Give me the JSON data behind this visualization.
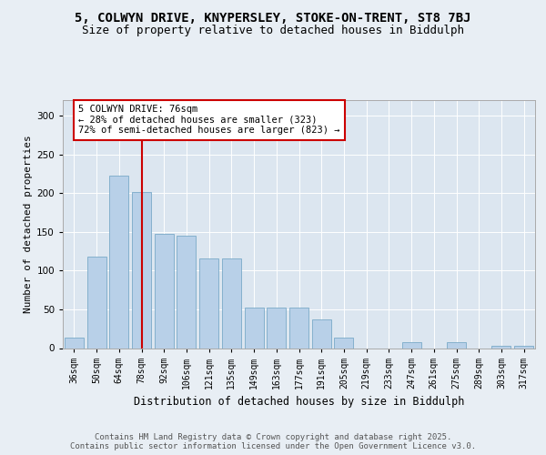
{
  "title1": "5, COLWYN DRIVE, KNYPERSLEY, STOKE-ON-TRENT, ST8 7BJ",
  "title2": "Size of property relative to detached houses in Biddulph",
  "xlabel": "Distribution of detached houses by size in Biddulph",
  "ylabel": "Number of detached properties",
  "categories": [
    "36sqm",
    "50sqm",
    "64sqm",
    "78sqm",
    "92sqm",
    "106sqm",
    "121sqm",
    "135sqm",
    "149sqm",
    "163sqm",
    "177sqm",
    "191sqm",
    "205sqm",
    "219sqm",
    "233sqm",
    "247sqm",
    "261sqm",
    "275sqm",
    "289sqm",
    "303sqm",
    "317sqm"
  ],
  "values": [
    13,
    118,
    222,
    201,
    147,
    145,
    116,
    116,
    52,
    52,
    52,
    37,
    14,
    0,
    0,
    8,
    0,
    8,
    0,
    3,
    3
  ],
  "bar_color": "#b8d0e8",
  "bar_edge_color": "#7aaac8",
  "vline_x": 3,
  "vline_color": "#cc0000",
  "annotation_text": "5 COLWYN DRIVE: 76sqm\n← 28% of detached houses are smaller (323)\n72% of semi-detached houses are larger (823) →",
  "annotation_box_color": "#ffffff",
  "annotation_border_color": "#cc0000",
  "ylim": [
    0,
    320
  ],
  "yticks": [
    0,
    50,
    100,
    150,
    200,
    250,
    300
  ],
  "background_color": "#e8eef4",
  "plot_bg_color": "#dce6f0",
  "footer_text": "Contains HM Land Registry data © Crown copyright and database right 2025.\nContains public sector information licensed under the Open Government Licence v3.0.",
  "title_fontsize": 10,
  "subtitle_fontsize": 9,
  "annotation_fontsize": 7.5,
  "footer_fontsize": 6.5,
  "ylabel_fontsize": 8,
  "xlabel_fontsize": 8.5,
  "xtick_fontsize": 7,
  "ytick_fontsize": 7.5
}
